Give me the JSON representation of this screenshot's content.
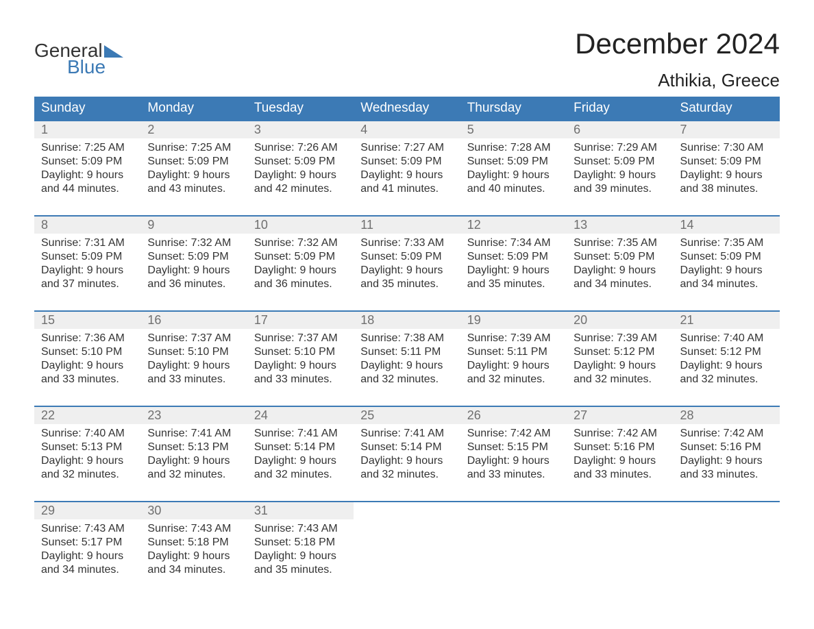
{
  "logo": {
    "line1": "General",
    "line2": "Blue",
    "triangle_color": "#3c7ab5"
  },
  "title": "December 2024",
  "location": "Athikia, Greece",
  "colors": {
    "header_bg": "#3c7ab5",
    "header_text": "#ffffff",
    "daynum_bg": "#efefef",
    "daynum_text": "#6f6f6f",
    "body_text": "#333333",
    "week_border": "#3c7ab5",
    "background": "#ffffff"
  },
  "fonts": {
    "title_size": 42,
    "location_size": 26,
    "header_size": 19,
    "daynum_size": 18,
    "body_size": 16
  },
  "day_headers": [
    "Sunday",
    "Monday",
    "Tuesday",
    "Wednesday",
    "Thursday",
    "Friday",
    "Saturday"
  ],
  "weeks": [
    [
      {
        "n": "1",
        "sunrise": "Sunrise: 7:25 AM",
        "sunset": "Sunset: 5:09 PM",
        "d1": "Daylight: 9 hours",
        "d2": "and 44 minutes."
      },
      {
        "n": "2",
        "sunrise": "Sunrise: 7:25 AM",
        "sunset": "Sunset: 5:09 PM",
        "d1": "Daylight: 9 hours",
        "d2": "and 43 minutes."
      },
      {
        "n": "3",
        "sunrise": "Sunrise: 7:26 AM",
        "sunset": "Sunset: 5:09 PM",
        "d1": "Daylight: 9 hours",
        "d2": "and 42 minutes."
      },
      {
        "n": "4",
        "sunrise": "Sunrise: 7:27 AM",
        "sunset": "Sunset: 5:09 PM",
        "d1": "Daylight: 9 hours",
        "d2": "and 41 minutes."
      },
      {
        "n": "5",
        "sunrise": "Sunrise: 7:28 AM",
        "sunset": "Sunset: 5:09 PM",
        "d1": "Daylight: 9 hours",
        "d2": "and 40 minutes."
      },
      {
        "n": "6",
        "sunrise": "Sunrise: 7:29 AM",
        "sunset": "Sunset: 5:09 PM",
        "d1": "Daylight: 9 hours",
        "d2": "and 39 minutes."
      },
      {
        "n": "7",
        "sunrise": "Sunrise: 7:30 AM",
        "sunset": "Sunset: 5:09 PM",
        "d1": "Daylight: 9 hours",
        "d2": "and 38 minutes."
      }
    ],
    [
      {
        "n": "8",
        "sunrise": "Sunrise: 7:31 AM",
        "sunset": "Sunset: 5:09 PM",
        "d1": "Daylight: 9 hours",
        "d2": "and 37 minutes."
      },
      {
        "n": "9",
        "sunrise": "Sunrise: 7:32 AM",
        "sunset": "Sunset: 5:09 PM",
        "d1": "Daylight: 9 hours",
        "d2": "and 36 minutes."
      },
      {
        "n": "10",
        "sunrise": "Sunrise: 7:32 AM",
        "sunset": "Sunset: 5:09 PM",
        "d1": "Daylight: 9 hours",
        "d2": "and 36 minutes."
      },
      {
        "n": "11",
        "sunrise": "Sunrise: 7:33 AM",
        "sunset": "Sunset: 5:09 PM",
        "d1": "Daylight: 9 hours",
        "d2": "and 35 minutes."
      },
      {
        "n": "12",
        "sunrise": "Sunrise: 7:34 AM",
        "sunset": "Sunset: 5:09 PM",
        "d1": "Daylight: 9 hours",
        "d2": "and 35 minutes."
      },
      {
        "n": "13",
        "sunrise": "Sunrise: 7:35 AM",
        "sunset": "Sunset: 5:09 PM",
        "d1": "Daylight: 9 hours",
        "d2": "and 34 minutes."
      },
      {
        "n": "14",
        "sunrise": "Sunrise: 7:35 AM",
        "sunset": "Sunset: 5:09 PM",
        "d1": "Daylight: 9 hours",
        "d2": "and 34 minutes."
      }
    ],
    [
      {
        "n": "15",
        "sunrise": "Sunrise: 7:36 AM",
        "sunset": "Sunset: 5:10 PM",
        "d1": "Daylight: 9 hours",
        "d2": "and 33 minutes."
      },
      {
        "n": "16",
        "sunrise": "Sunrise: 7:37 AM",
        "sunset": "Sunset: 5:10 PM",
        "d1": "Daylight: 9 hours",
        "d2": "and 33 minutes."
      },
      {
        "n": "17",
        "sunrise": "Sunrise: 7:37 AM",
        "sunset": "Sunset: 5:10 PM",
        "d1": "Daylight: 9 hours",
        "d2": "and 33 minutes."
      },
      {
        "n": "18",
        "sunrise": "Sunrise: 7:38 AM",
        "sunset": "Sunset: 5:11 PM",
        "d1": "Daylight: 9 hours",
        "d2": "and 32 minutes."
      },
      {
        "n": "19",
        "sunrise": "Sunrise: 7:39 AM",
        "sunset": "Sunset: 5:11 PM",
        "d1": "Daylight: 9 hours",
        "d2": "and 32 minutes."
      },
      {
        "n": "20",
        "sunrise": "Sunrise: 7:39 AM",
        "sunset": "Sunset: 5:12 PM",
        "d1": "Daylight: 9 hours",
        "d2": "and 32 minutes."
      },
      {
        "n": "21",
        "sunrise": "Sunrise: 7:40 AM",
        "sunset": "Sunset: 5:12 PM",
        "d1": "Daylight: 9 hours",
        "d2": "and 32 minutes."
      }
    ],
    [
      {
        "n": "22",
        "sunrise": "Sunrise: 7:40 AM",
        "sunset": "Sunset: 5:13 PM",
        "d1": "Daylight: 9 hours",
        "d2": "and 32 minutes."
      },
      {
        "n": "23",
        "sunrise": "Sunrise: 7:41 AM",
        "sunset": "Sunset: 5:13 PM",
        "d1": "Daylight: 9 hours",
        "d2": "and 32 minutes."
      },
      {
        "n": "24",
        "sunrise": "Sunrise: 7:41 AM",
        "sunset": "Sunset: 5:14 PM",
        "d1": "Daylight: 9 hours",
        "d2": "and 32 minutes."
      },
      {
        "n": "25",
        "sunrise": "Sunrise: 7:41 AM",
        "sunset": "Sunset: 5:14 PM",
        "d1": "Daylight: 9 hours",
        "d2": "and 32 minutes."
      },
      {
        "n": "26",
        "sunrise": "Sunrise: 7:42 AM",
        "sunset": "Sunset: 5:15 PM",
        "d1": "Daylight: 9 hours",
        "d2": "and 33 minutes."
      },
      {
        "n": "27",
        "sunrise": "Sunrise: 7:42 AM",
        "sunset": "Sunset: 5:16 PM",
        "d1": "Daylight: 9 hours",
        "d2": "and 33 minutes."
      },
      {
        "n": "28",
        "sunrise": "Sunrise: 7:42 AM",
        "sunset": "Sunset: 5:16 PM",
        "d1": "Daylight: 9 hours",
        "d2": "and 33 minutes."
      }
    ],
    [
      {
        "n": "29",
        "sunrise": "Sunrise: 7:43 AM",
        "sunset": "Sunset: 5:17 PM",
        "d1": "Daylight: 9 hours",
        "d2": "and 34 minutes."
      },
      {
        "n": "30",
        "sunrise": "Sunrise: 7:43 AM",
        "sunset": "Sunset: 5:18 PM",
        "d1": "Daylight: 9 hours",
        "d2": "and 34 minutes."
      },
      {
        "n": "31",
        "sunrise": "Sunrise: 7:43 AM",
        "sunset": "Sunset: 5:18 PM",
        "d1": "Daylight: 9 hours",
        "d2": "and 35 minutes."
      },
      null,
      null,
      null,
      null
    ]
  ]
}
